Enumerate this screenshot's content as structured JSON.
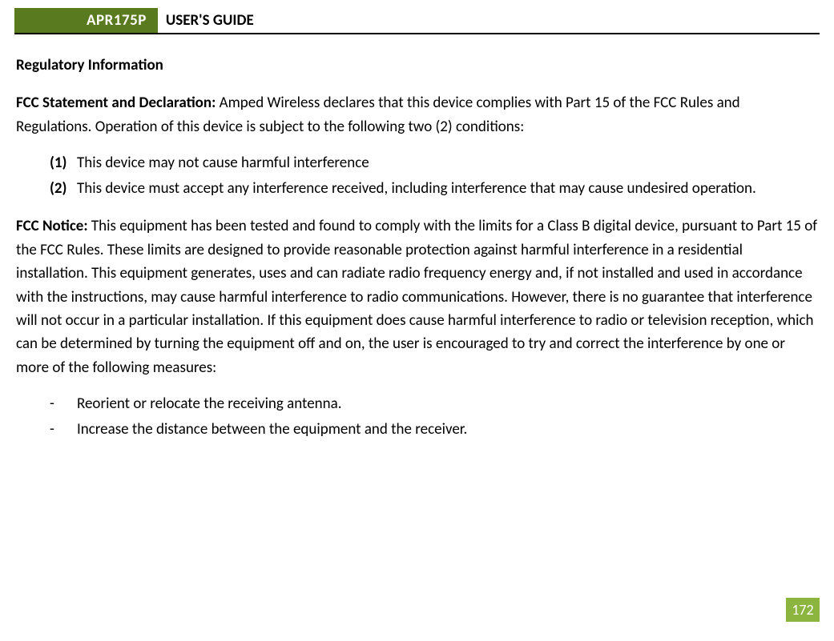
{
  "header": {
    "badge": "APR175P",
    "title": "USER'S GUIDE",
    "badge_bg": "#5a7a1f",
    "badge_fg": "#ffffff"
  },
  "section_title": "Regulatory Information",
  "fcc_statement": {
    "label": "FCC Statement and Declaration:",
    "text": " Amped Wireless declares that this device complies with Part 15 of the FCC Rules and Regulations.  Operation of this device is subject to the following two (2) conditions:"
  },
  "conditions": [
    {
      "marker": "(1)",
      "text": "This device may not cause harmful interference"
    },
    {
      "marker": "(2)",
      "text": "This device must accept any interference received, including interference that may cause undesired operation."
    }
  ],
  "fcc_notice": {
    "label": "FCC Notice:",
    "text": " This equipment has been tested and found to comply with the limits for a Class B digital device, pursuant to Part 15 of the FCC Rules.  These limits are designed to provide reasonable protection against harmful interference in a residential installation.  This equipment generates, uses and can radiate radio frequency energy and, if not installed and used in accordance with the instructions, may cause harmful interference to radio communications.  However, there is no guarantee that interference will not occur in a particular installation.  If this equipment does cause harmful interference to radio or television reception, which can be determined by turning the equipment off and on, the user is encouraged to try and correct the interference by one or more of the following measures:"
  },
  "measures": [
    {
      "marker": "-",
      "text": "Reorient or relocate the receiving antenna."
    },
    {
      "marker": "-",
      "text": "Increase the distance between the equipment and the receiver."
    }
  ],
  "page_number": "172",
  "page_number_bg": "#8bb53f",
  "page_number_fg": "#ffffff"
}
